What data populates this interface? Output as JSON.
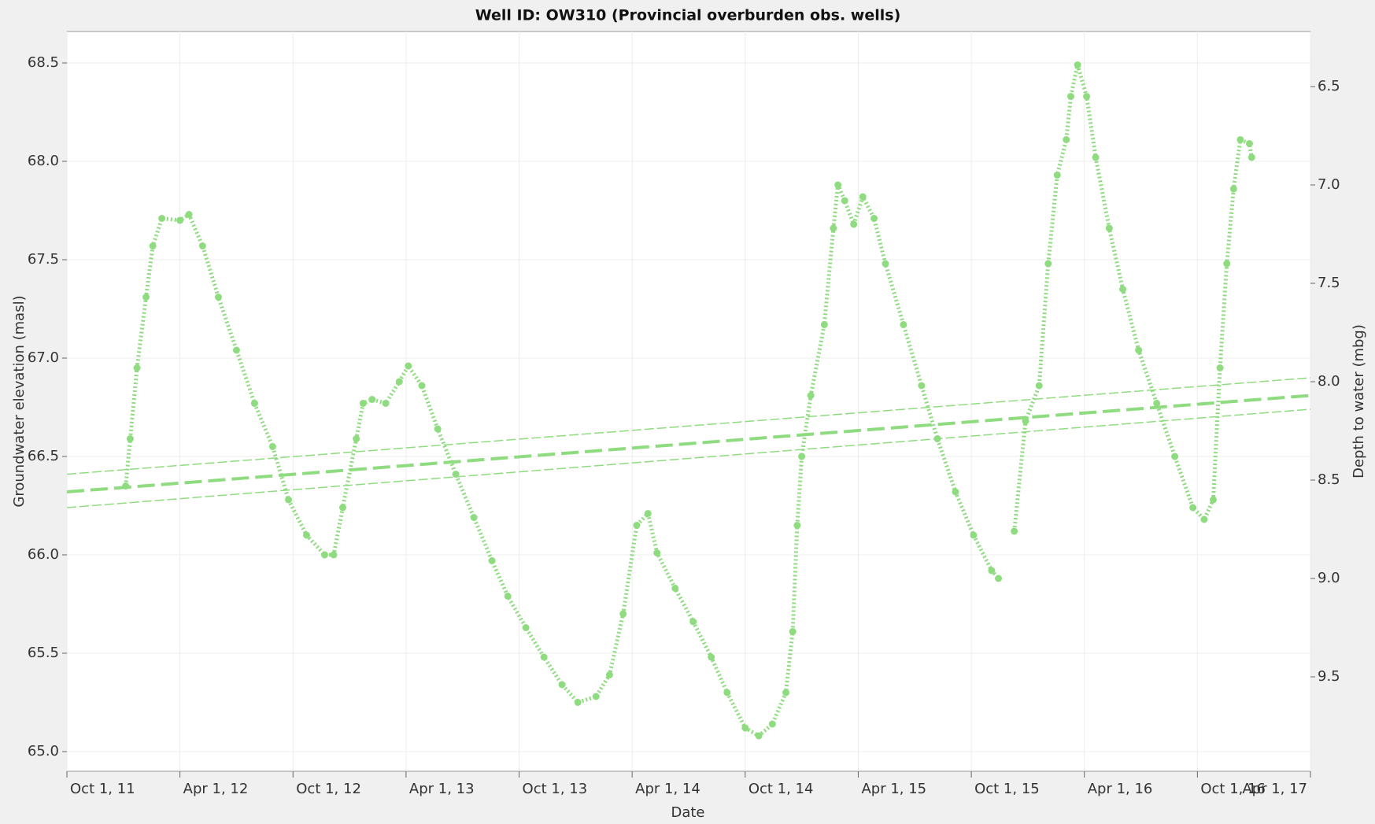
{
  "chart_data": {
    "type": "scatter",
    "title": "Well ID: OW310 (Provincial overburden obs. wells)",
    "x_label": "Date",
    "y_label": "Groundwater elevation (masl)",
    "y2_label": "Depth to water (mbg)",
    "xlim": [
      2011.75,
      2017.25
    ],
    "xticks": [
      {
        "value": 2011.75,
        "label": "Oct 1, 11"
      },
      {
        "value": 2012.25,
        "label": "Apr 1, 12"
      },
      {
        "value": 2012.75,
        "label": "Oct 1, 12"
      },
      {
        "value": 2013.25,
        "label": "Apr 1, 13"
      },
      {
        "value": 2013.75,
        "label": "Oct 1, 13"
      },
      {
        "value": 2014.25,
        "label": "Apr 1, 14"
      },
      {
        "value": 2014.75,
        "label": "Oct 1, 14"
      },
      {
        "value": 2015.25,
        "label": "Apr 1, 15"
      },
      {
        "value": 2015.75,
        "label": "Oct 1, 15"
      },
      {
        "value": 2016.25,
        "label": "Apr 1, 16"
      },
      {
        "value": 2016.75,
        "label": "Oct 1, 16"
      },
      {
        "value": 2017.25,
        "label": "Apr 1, 17"
      }
    ],
    "ylim": [
      64.9,
      68.66
    ],
    "yticks": [
      {
        "value": 65.0,
        "label": "65.0"
      },
      65.5,
      {
        "value": 66.0,
        "label": "66.0"
      },
      66.5,
      {
        "value": 67.0,
        "label": "67.0"
      },
      67.5,
      {
        "value": 68.0,
        "label": "68.0"
      },
      68.5
    ],
    "y2lim": [
      6.22,
      9.98
    ],
    "y2_inverted": true,
    "y2ticks": [
      6.5,
      {
        "value": 7.0,
        "label": "7.0"
      },
      7.5,
      {
        "value": 8.0,
        "label": "8.0"
      },
      8.5,
      {
        "value": 9.0,
        "label": "9.0"
      },
      9.5
    ],
    "grid": true,
    "series": [
      {
        "color": "#8fdc80",
        "style": "markers",
        "x": [
          2012.01,
          2012.03,
          2012.06,
          2012.1,
          2012.13,
          2012.17,
          2012.25,
          2012.29,
          2012.35,
          2012.42,
          2012.5,
          2012.58,
          2012.66,
          2012.73,
          2012.81,
          2012.89,
          2012.93,
          2012.97,
          2013.03,
          2013.06,
          2013.1,
          2013.16,
          2013.22,
          2013.26,
          2013.32,
          2013.39,
          2013.47,
          2013.55,
          2013.63,
          2013.7,
          2013.78,
          2013.86,
          2013.94,
          2014.01,
          2014.09,
          2014.15,
          2014.21,
          2014.27,
          2014.32,
          2014.36,
          2014.44,
          2014.52,
          2014.6,
          2014.67,
          2014.75,
          2014.81,
          2014.87,
          2014.93,
          2014.96,
          2014.98,
          2015.0,
          2015.04,
          2015.1,
          2015.14,
          2015.16,
          2015.19,
          2015.23,
          2015.27,
          2015.32,
          2015.37,
          2015.45,
          2015.53,
          2015.6,
          2015.68,
          2015.76,
          2015.84,
          2015.87,
          2015.9,
          2015.94,
          2015.99,
          2016.05,
          2016.09,
          2016.13,
          2016.17,
          2016.19,
          2016.22,
          2016.26,
          2016.3,
          2016.36,
          2016.42,
          2016.49,
          2016.57,
          2016.65,
          2016.73,
          2016.78,
          2016.82,
          2016.85,
          2016.88,
          2016.91,
          2016.94,
          2016.98,
          2016.99
        ],
        "values": [
          66.35,
          66.59,
          66.95,
          67.31,
          67.57,
          67.71,
          67.7,
          67.73,
          67.57,
          67.31,
          67.04,
          66.77,
          66.55,
          66.28,
          66.1,
          66.0,
          66.0,
          66.24,
          66.59,
          66.77,
          66.79,
          66.77,
          66.88,
          66.96,
          66.86,
          66.64,
          66.41,
          66.19,
          65.97,
          65.79,
          65.63,
          65.48,
          65.34,
          65.25,
          65.28,
          65.39,
          65.7,
          66.15,
          66.21,
          66.01,
          65.83,
          65.66,
          65.48,
          65.3,
          65.12,
          65.08,
          65.14,
          65.3,
          65.61,
          66.15,
          66.5,
          66.81,
          67.17,
          67.66,
          67.88,
          67.8,
          67.68,
          67.82,
          67.71,
          67.48,
          67.17,
          66.86,
          66.59,
          66.32,
          66.1,
          65.92,
          65.88,
          null,
          66.12,
          66.68,
          66.86,
          67.48,
          67.93,
          68.11,
          68.33,
          68.49,
          68.33,
          68.02,
          67.66,
          67.35,
          67.04,
          66.77,
          66.5,
          66.24,
          66.18,
          66.28,
          66.95,
          67.48,
          67.86,
          68.11,
          68.09,
          68.02
        ]
      },
      {
        "color": "#8fdc80",
        "style": "dashed",
        "x": [
          2011.75,
          2017.25
        ],
        "values": [
          66.32,
          66.81
        ]
      },
      {
        "color": "#8fdc80",
        "style": "thin-dashed",
        "x": [
          2011.75,
          2017.25
        ],
        "values": [
          66.41,
          66.9
        ]
      },
      {
        "color": "#8fdc80",
        "style": "thin-dashed",
        "x": [
          2011.75,
          2017.25
        ],
        "values": [
          66.24,
          66.74
        ]
      }
    ]
  }
}
